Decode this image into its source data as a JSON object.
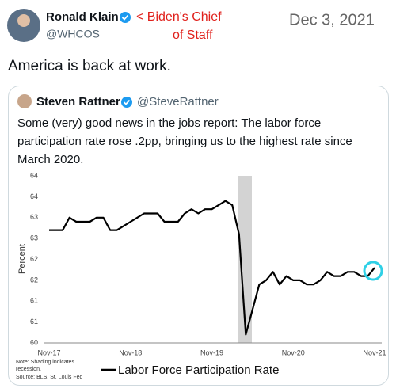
{
  "tweet": {
    "author": {
      "name": "Ronald Klain",
      "handle": "@WHCOS"
    },
    "annotation": [
      "< Biden's Chief",
      "of Staff"
    ],
    "date": "Dec 3, 2021",
    "text": "America is back at work."
  },
  "quoted": {
    "author": {
      "name": "Steven Rattner",
      "handle": "@SteveRattner"
    },
    "text_lines": [
      "Some (very) good news in the jobs report: The labor force",
      "participation rate rose .2pp, bringing us to the highest rate since",
      "March 2020."
    ]
  },
  "chart_data": {
    "type": "line",
    "y_label": "Percent",
    "categories": [
      "Nov-17",
      null,
      null,
      null,
      null,
      null,
      null,
      null,
      null,
      null,
      null,
      null,
      "Nov-18",
      null,
      null,
      null,
      null,
      null,
      null,
      null,
      null,
      null,
      null,
      null,
      "Nov-19",
      null,
      null,
      null,
      null,
      null,
      null,
      null,
      null,
      null,
      null,
      null,
      "Nov-20",
      null,
      null,
      null,
      null,
      null,
      null,
      null,
      null,
      null,
      null,
      null,
      "Nov-21"
    ],
    "series": [
      {
        "name": "Labor Force Participation Rate",
        "color": "#000000",
        "values": [
          62.7,
          62.7,
          62.7,
          63.0,
          62.9,
          62.9,
          62.9,
          63.0,
          63.0,
          62.7,
          62.7,
          62.8,
          62.9,
          63.0,
          63.1,
          63.1,
          63.1,
          62.9,
          62.9,
          62.9,
          63.1,
          63.2,
          63.1,
          63.2,
          63.2,
          63.3,
          63.4,
          63.3,
          62.6,
          60.2,
          60.8,
          61.4,
          61.5,
          61.7,
          61.4,
          61.6,
          61.5,
          61.5,
          61.4,
          61.4,
          61.5,
          61.7,
          61.6,
          61.6,
          61.7,
          61.7,
          61.6,
          61.6,
          61.8
        ]
      }
    ],
    "ylim": [
      60,
      64
    ],
    "yticks": [
      {
        "value": 64,
        "label": "64"
      },
      {
        "value": 63.5,
        "label": "64"
      },
      {
        "value": 63,
        "label": "63"
      },
      {
        "value": 62.5,
        "label": "63"
      },
      {
        "value": 62,
        "label": "62"
      },
      {
        "value": 61.5,
        "label": "62"
      },
      {
        "value": 61,
        "label": "61"
      },
      {
        "value": 60.5,
        "label": "61"
      },
      {
        "value": 60,
        "label": "60"
      }
    ],
    "notes": [
      "Note: Shading indicates",
      "recession.",
      "Source: BLS, St. Louis Fed"
    ]
  }
}
